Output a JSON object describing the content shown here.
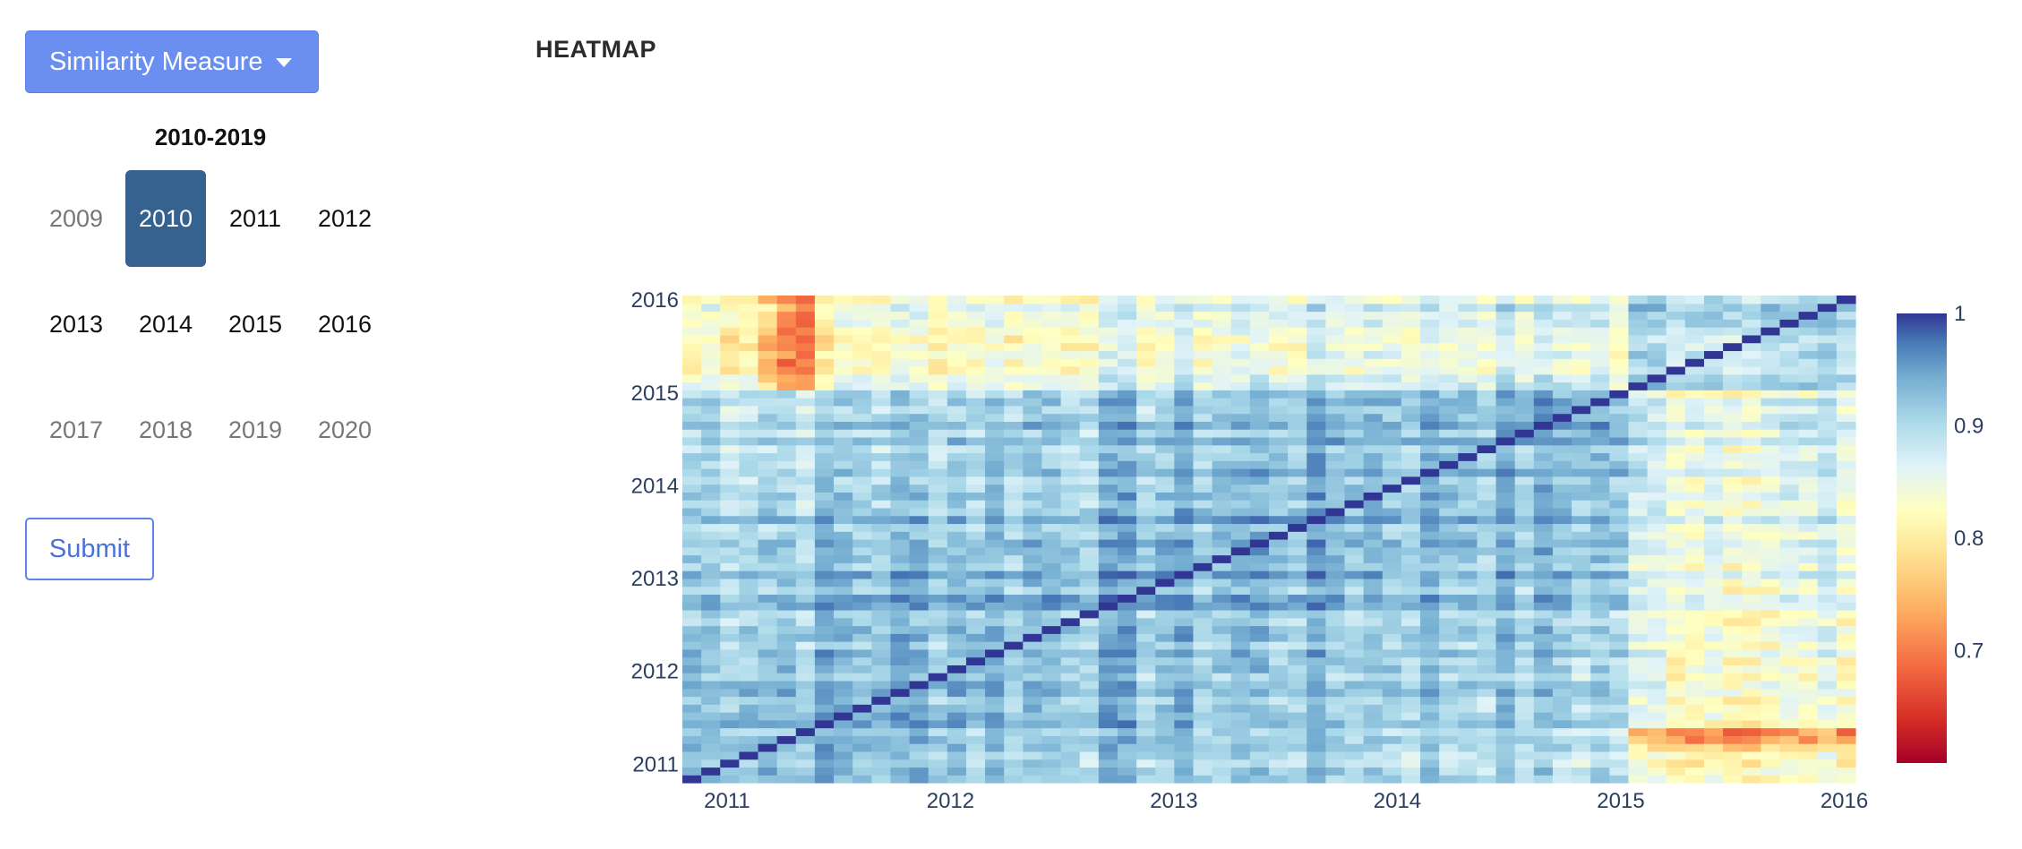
{
  "controls": {
    "dropdown_label": "Similarity Measure",
    "decade_label": "2010-2019",
    "years": [
      {
        "label": "2009",
        "state": "muted"
      },
      {
        "label": "2010",
        "state": "active"
      },
      {
        "label": "2011",
        "state": "normal"
      },
      {
        "label": "2012",
        "state": "normal"
      },
      {
        "label": "2013",
        "state": "normal"
      },
      {
        "label": "2014",
        "state": "normal"
      },
      {
        "label": "2015",
        "state": "normal"
      },
      {
        "label": "2016",
        "state": "normal"
      },
      {
        "label": "2017",
        "state": "muted"
      },
      {
        "label": "2018",
        "state": "muted"
      },
      {
        "label": "2019",
        "state": "muted"
      },
      {
        "label": "2020",
        "state": "muted"
      }
    ],
    "submit_label": "Submit"
  },
  "heatmap_title": "HEATMAP",
  "chart_data": {
    "type": "heatmap",
    "x_range": [
      2010.8,
      2016.05
    ],
    "y_range": [
      2010.8,
      2016.05
    ],
    "x_ticks": [
      "2011",
      "2012",
      "2013",
      "2014",
      "2015",
      "2016"
    ],
    "y_ticks": [
      "2011",
      "2012",
      "2013",
      "2014",
      "2015",
      "2016"
    ],
    "grid_size": 62,
    "diagonal_value": 1,
    "colorscale": "RdYlBu",
    "colorbar": {
      "ticks": [
        "1",
        "0.9",
        "0.8",
        "0.7"
      ],
      "min": 0.6,
      "max": 1
    },
    "low_similarity_years": [
      "2011.3",
      "2015.1",
      "2015.8"
    ],
    "accent_colors": {
      "high": "#313695",
      "mid": "#ffffbf",
      "low": "#a50026"
    }
  }
}
